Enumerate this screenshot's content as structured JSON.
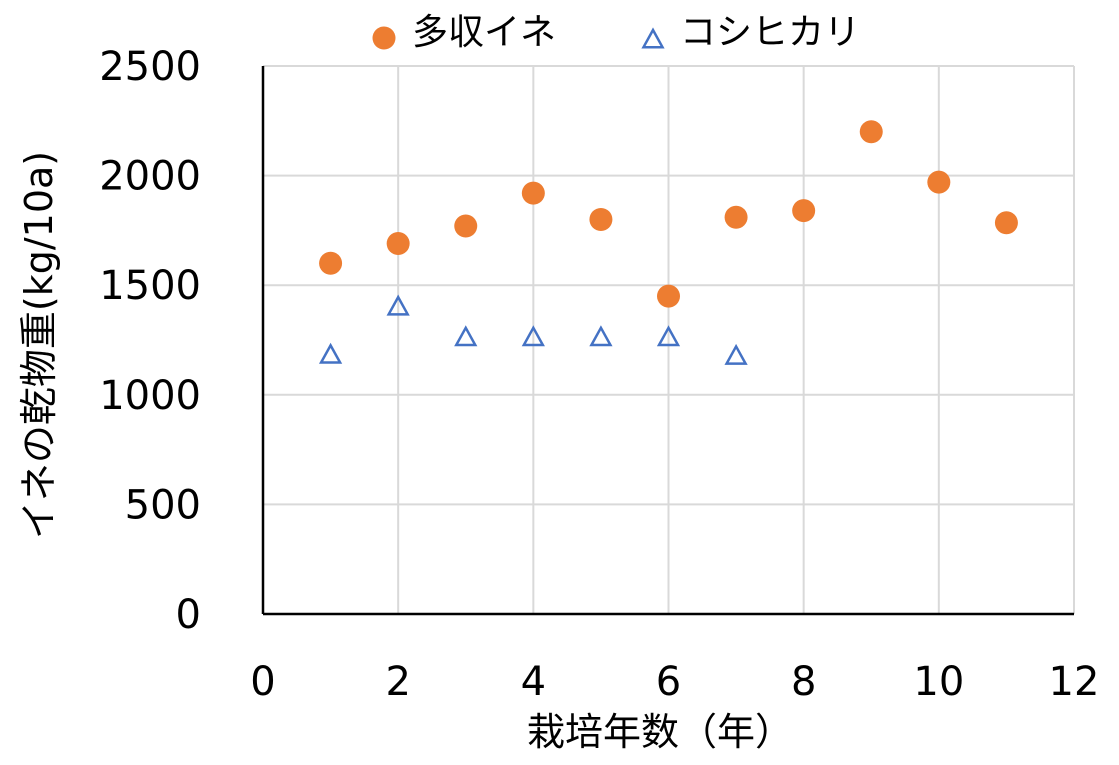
{
  "chart_data": {
    "type": "scatter",
    "title": "",
    "xlabel": "栽培年数（年）",
    "ylabel": "イネの乾物重(kg/10a)",
    "xlim": [
      0,
      12
    ],
    "ylim": [
      0,
      2500
    ],
    "xticks": [
      "0",
      "2",
      "4",
      "6",
      "8",
      "10",
      "12"
    ],
    "yticks": [
      "0",
      "500",
      "1000",
      "1500",
      "2000",
      "2500"
    ],
    "grid": true,
    "legend_position": "top",
    "series": [
      {
        "name": "多収イネ",
        "marker": "circle",
        "color": "#ED7D31",
        "x": [
          1,
          2,
          3,
          4,
          5,
          6,
          7,
          8,
          9,
          10,
          11
        ],
        "y": [
          1600,
          1690,
          1770,
          1920,
          1800,
          1450,
          1810,
          1840,
          2200,
          1970,
          1785
        ]
      },
      {
        "name": "コシヒカリ",
        "marker": "triangle-open",
        "color": "#4472C4",
        "x": [
          1,
          2,
          3,
          4,
          5,
          6,
          7
        ],
        "y": [
          1180,
          1400,
          1260,
          1260,
          1260,
          1260,
          1175
        ]
      }
    ]
  }
}
